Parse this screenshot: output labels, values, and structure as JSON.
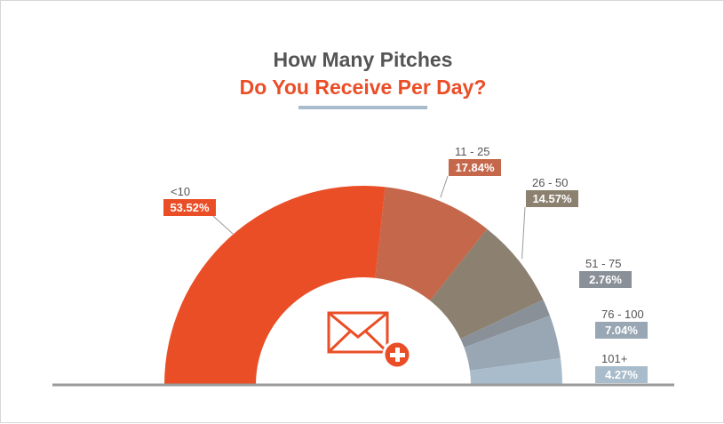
{
  "header": {
    "title_line1": "How Many Pitches",
    "title_line2": "Do You Receive Per Day?"
  },
  "icon": "envelope-plus-icon",
  "colors": {
    "accent": "#ea4e27",
    "title_gray": "#555555",
    "rule": "#a9bccc",
    "baseline": "#9a9a9a"
  },
  "chart_data": {
    "type": "pie",
    "shape": "half-donut",
    "title": "How Many Pitches Do You Receive Per Day?",
    "slices": [
      {
        "label": "<10",
        "value": 53.52,
        "display": "53.52%",
        "color": "#ea4e27"
      },
      {
        "label": "11 - 25",
        "value": 17.84,
        "display": "17.84%",
        "color": "#c4674a"
      },
      {
        "label": "26 - 50",
        "value": 14.57,
        "display": "14.57%",
        "color": "#8c8170"
      },
      {
        "label": "51 - 75",
        "value": 2.76,
        "display": "2.76%",
        "color": "#8a9098"
      },
      {
        "label": "76 - 100",
        "value": 7.04,
        "display": "7.04%",
        "color": "#99a7b4"
      },
      {
        "label": "101+",
        "value": 4.27,
        "display": "4.27%",
        "color": "#a9bccc"
      }
    ]
  }
}
